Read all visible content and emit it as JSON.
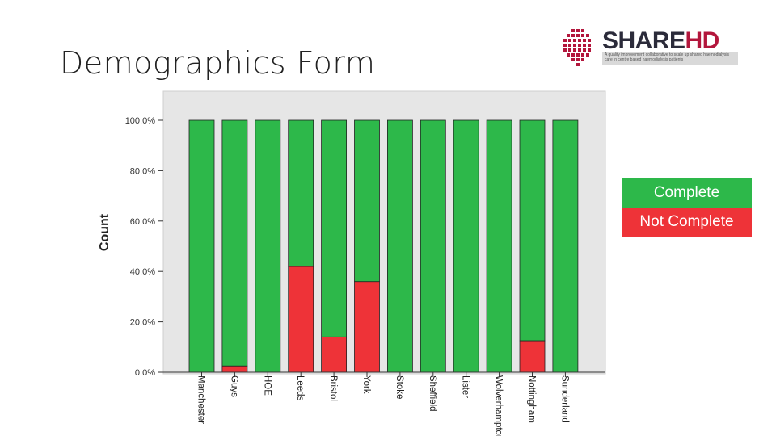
{
  "slide": {
    "title": "Demographics Form"
  },
  "logo": {
    "name_a": "SHARE",
    "name_b": "HD",
    "tagline": "A quality improvement collaborative to scale up shared haemodialysis care in centre based haemodialysis patients"
  },
  "colors": {
    "complete": "#2db84a",
    "not_complete": "#ee3338",
    "plot_bg": "#e6e6e6"
  },
  "legend": {
    "complete": "Complete",
    "not_complete": "Not Complete"
  },
  "chart_data": {
    "type": "bar",
    "stacked": true,
    "ylabel": "Count",
    "xlabel": "",
    "ylim": [
      0,
      100
    ],
    "yticks": [
      "0.0%",
      "20.0%",
      "40.0%",
      "60.0%",
      "80.0%",
      "100.0%"
    ],
    "categories": [
      "Manchester",
      "Guys",
      "HOE",
      "Leeds",
      "Bristol",
      "York",
      "Stoke",
      "Sheffield",
      "Lister",
      "Wolverhampton",
      "Nottingham",
      "Sunderland"
    ],
    "series": [
      {
        "name": "Not Complete",
        "values": [
          0,
          2.5,
          0,
          42,
          14,
          36,
          0,
          0,
          0,
          0,
          12.5,
          0
        ]
      },
      {
        "name": "Complete",
        "values": [
          100,
          97.5,
          100,
          58,
          86,
          64,
          100,
          100,
          100,
          100,
          87.5,
          100
        ]
      }
    ],
    "grid": false,
    "legend_position": "right"
  }
}
